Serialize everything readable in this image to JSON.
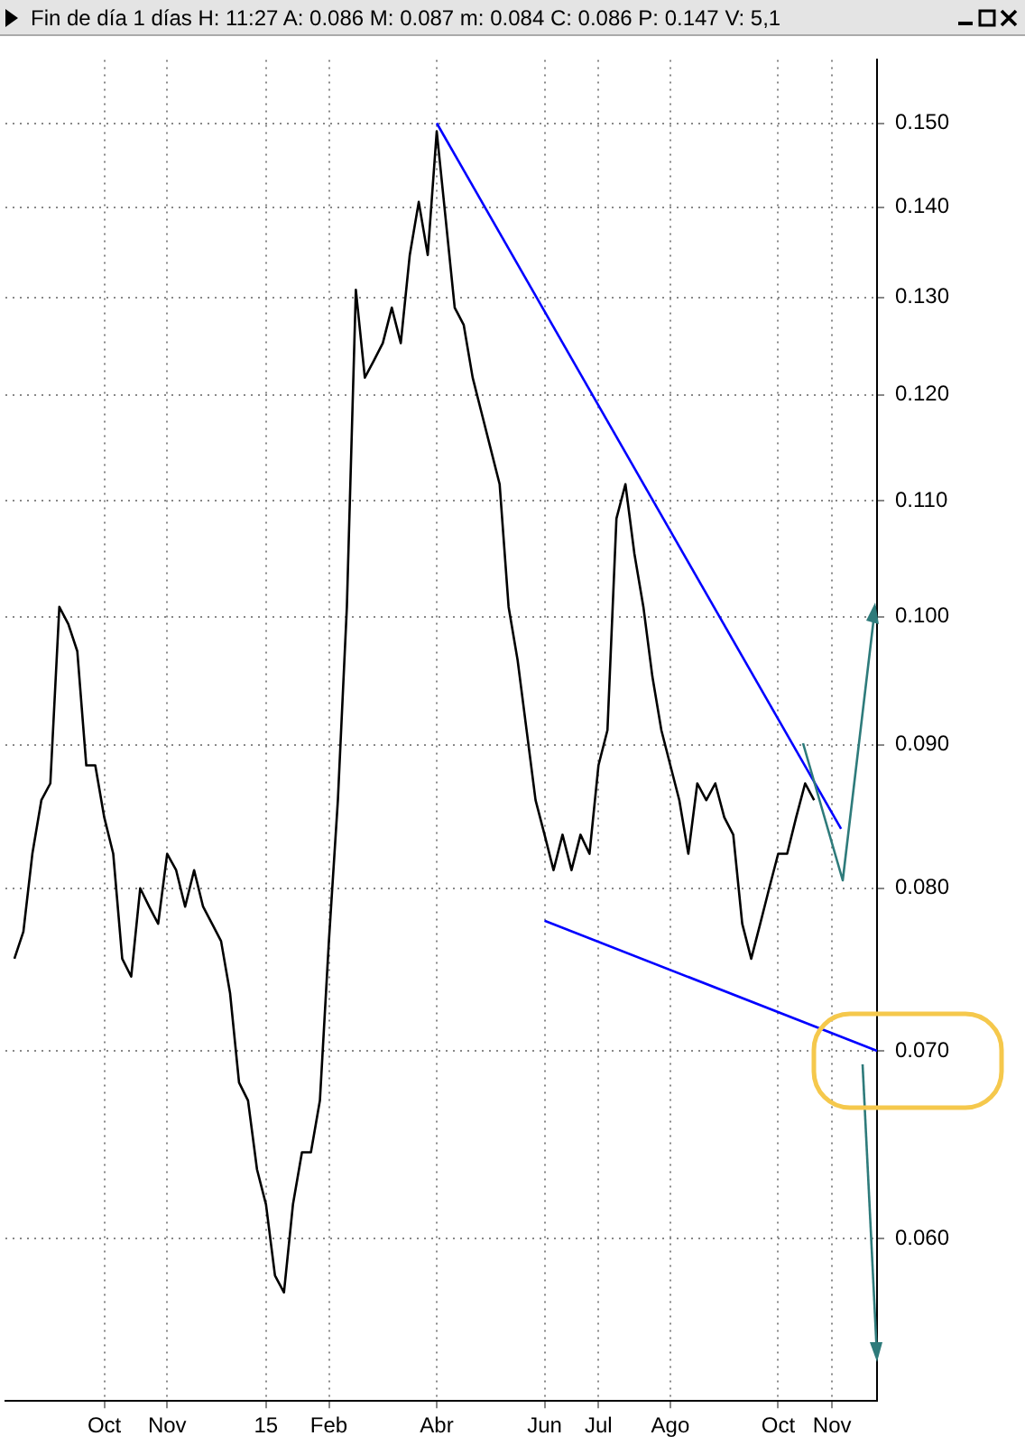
{
  "chart_data": {
    "type": "line",
    "title": "Fin de día 1 días  H: 11:27  A: 0.086  M: 0.087  m: 0.084  C: 0.086  P: 0.147  V: 5,1",
    "categories": [
      null,
      null,
      null,
      null,
      null,
      null,
      null,
      null,
      null,
      null,
      null,
      "Oct",
      null,
      null,
      null,
      null,
      null,
      null,
      "Nov",
      null,
      null,
      null,
      null,
      null,
      null,
      null,
      null,
      null,
      null,
      "15",
      null,
      null,
      null,
      null,
      null,
      null,
      "Feb",
      null,
      null,
      null,
      null,
      null,
      null,
      null,
      null,
      null,
      null,
      null,
      "Abr",
      null,
      null,
      null,
      null,
      null,
      null,
      null,
      null,
      null,
      null,
      null,
      "Jun",
      null,
      null,
      null,
      null,
      null,
      "Jul",
      null,
      null,
      null,
      null,
      null,
      null,
      null,
      "Ago",
      null,
      null,
      null,
      null,
      null,
      null,
      null,
      null,
      null,
      null,
      null,
      "Oct",
      null,
      null,
      null,
      null,
      null,
      "Nov",
      null,
      null,
      null,
      null,
      null
    ],
    "series": [
      {
        "color": "#000000",
        "values": [
          null,
          0.0755,
          0.0772,
          0.0823,
          0.086,
          0.0872,
          0.1008,
          0.0994,
          0.0972,
          0.0885,
          0.0885,
          0.0848,
          0.0823,
          0.0755,
          0.0744,
          0.08,
          0.0788,
          0.0777,
          0.0823,
          0.0812,
          0.0788,
          0.0812,
          0.0788,
          0.0777,
          0.0766,
          0.0734,
          0.0682,
          0.0672,
          0.0635,
          0.0617,
          0.0582,
          0.0574,
          0.0617,
          0.0644,
          0.0644,
          0.0672,
          0.0766,
          0.086,
          0.1008,
          0.1308,
          0.1217,
          0.1234,
          0.1252,
          0.1289,
          0.1252,
          0.1346,
          0.1406,
          0.1346,
          0.149,
          0.1386,
          0.1289,
          0.1271,
          0.1217,
          0.1182,
          0.1148,
          0.1115,
          0.1008,
          0.0965,
          0.0911,
          0.086,
          0.0836,
          0.0812,
          0.0836,
          0.0812,
          0.0836,
          0.0823,
          0.0885,
          0.0911,
          0.1084,
          0.1115,
          0.1053,
          0.1008,
          0.0952,
          0.0911,
          0.0885,
          0.086,
          0.0823,
          0.0872,
          0.086,
          0.0872,
          0.0848,
          0.0836,
          0.0777,
          0.0755,
          0.0777,
          0.08,
          0.0823,
          0.0823,
          0.0848,
          0.0872,
          0.086,
          null,
          null,
          null,
          null,
          null,
          null,
          null
        ]
      },
      {
        "color": "#0000ff",
        "values": [
          null,
          null,
          null,
          null,
          null,
          null,
          null,
          null,
          null,
          null,
          null,
          null,
          null,
          null,
          null,
          null,
          null,
          null,
          null,
          null,
          null,
          null,
          null,
          null,
          null,
          null,
          null,
          null,
          null,
          null,
          null,
          null,
          null,
          null,
          null,
          null,
          null,
          null,
          null,
          null,
          null,
          null,
          null,
          null,
          null,
          null,
          null,
          null,
          0.15,
          null,
          null,
          null,
          null,
          null,
          null,
          null,
          null,
          null,
          null,
          null,
          null,
          null,
          null,
          null,
          null,
          null,
          null,
          null,
          null,
          null,
          null,
          null,
          null,
          null,
          null,
          null,
          null,
          null,
          null,
          null,
          null,
          null,
          null,
          null,
          null,
          null,
          null,
          null,
          null,
          null,
          null,
          null,
          null,
          0.084,
          null,
          null,
          null,
          null
        ]
      },
      {
        "color": "#0000ff",
        "values": [
          null,
          null,
          null,
          null,
          null,
          null,
          null,
          null,
          null,
          null,
          null,
          null,
          null,
          null,
          null,
          null,
          null,
          null,
          null,
          null,
          null,
          null,
          null,
          null,
          null,
          null,
          null,
          null,
          null,
          null,
          null,
          null,
          null,
          null,
          null,
          null,
          null,
          null,
          null,
          null,
          null,
          null,
          null,
          null,
          null,
          null,
          null,
          null,
          null,
          null,
          null,
          null,
          null,
          null,
          null,
          null,
          null,
          null,
          null,
          null,
          0.0779,
          null,
          null,
          null,
          null,
          null,
          null,
          null,
          null,
          null,
          null,
          null,
          null,
          null,
          null,
          null,
          null,
          null,
          null,
          null,
          null,
          null,
          null,
          null,
          null,
          null,
          null,
          null,
          null,
          null,
          null,
          null,
          null,
          null,
          null,
          null,
          null,
          0.07
        ]
      }
    ],
    "log": "y",
    "ylim": [
      0.0525,
      0.158
    ],
    "yticks": [
      {
        "value": 0.06,
        "label": "0.060"
      },
      {
        "value": 0.07,
        "label": "0.070"
      },
      {
        "value": 0.08,
        "label": "0.080"
      },
      {
        "value": 0.09,
        "label": "0.090"
      },
      {
        "value": 0.1,
        "label": "0.100"
      },
      {
        "value": 0.11,
        "label": "0.110"
      },
      {
        "value": 0.12,
        "label": "0.120"
      },
      {
        "value": 0.13,
        "label": "0.130"
      },
      {
        "value": 0.14,
        "label": "0.140"
      },
      {
        "value": 0.15,
        "label": "0.150"
      }
    ],
    "grid": true,
    "marker": "none",
    "line_style": "solid",
    "legend": false
  }
}
